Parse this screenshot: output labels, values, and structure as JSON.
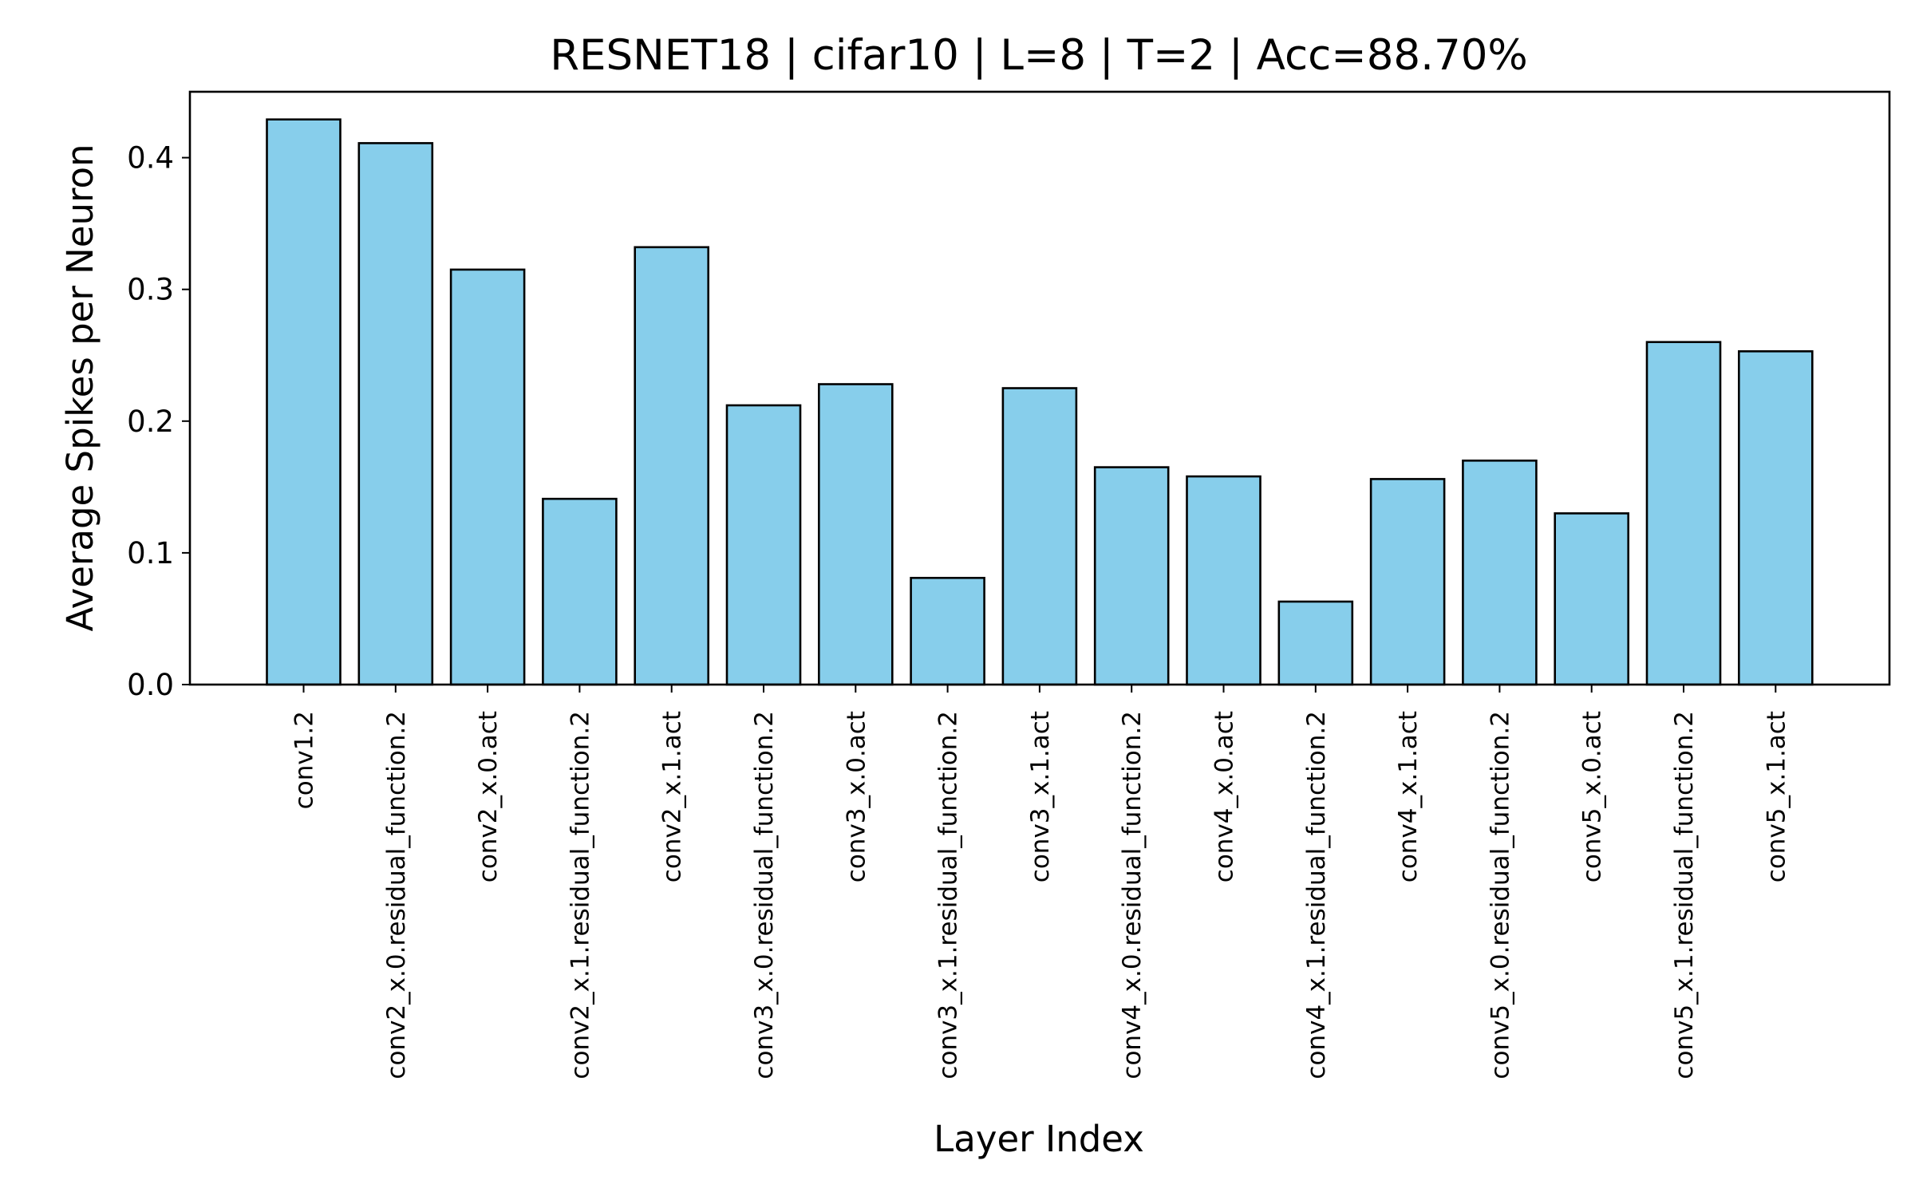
{
  "chart_data": {
    "type": "bar",
    "title": "RESNET18 | cifar10 | L=8 | T=2 | Acc=88.70%",
    "xlabel": "Layer Index",
    "ylabel": "Average Spikes per Neuron",
    "categories": [
      "conv1.2",
      "conv2_x.0.residual_function.2",
      "conv2_x.0.act",
      "conv2_x.1.residual_function.2",
      "conv2_x.1.act",
      "conv3_x.0.residual_function.2",
      "conv3_x.0.act",
      "conv3_x.1.residual_function.2",
      "conv3_x.1.act",
      "conv4_x.0.residual_function.2",
      "conv4_x.0.act",
      "conv4_x.1.residual_function.2",
      "conv4_x.1.act",
      "conv5_x.0.residual_function.2",
      "conv5_x.0.act",
      "conv5_x.1.residual_function.2",
      "conv5_x.1.act"
    ],
    "values": [
      0.429,
      0.411,
      0.315,
      0.141,
      0.332,
      0.212,
      0.228,
      0.081,
      0.225,
      0.165,
      0.158,
      0.063,
      0.156,
      0.17,
      0.13,
      0.26,
      0.253
    ],
    "ylim": [
      0,
      0.45
    ],
    "yticks": [
      "0.0",
      "0.1",
      "0.2",
      "0.3",
      "0.4"
    ],
    "grid": false,
    "legend": "none",
    "bar_color": "#87ceeb",
    "edge_color": "#000000"
  }
}
